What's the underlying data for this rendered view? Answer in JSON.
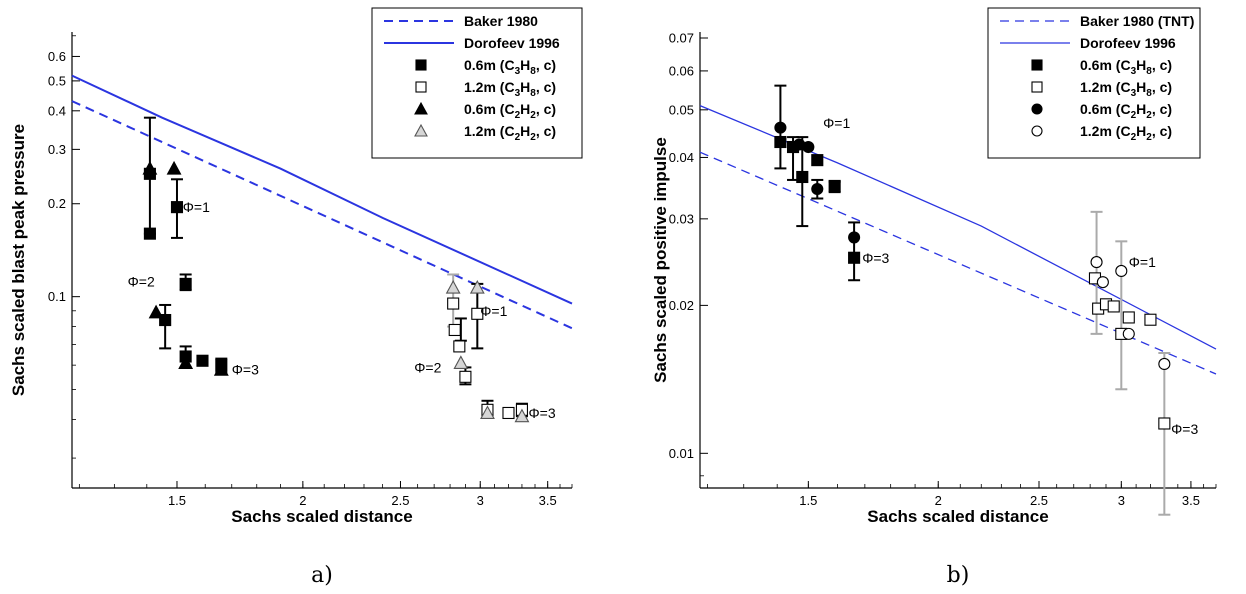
{
  "chart_data": [
    {
      "type": "scatter",
      "panel": "a)",
      "xlabel": "Sachs scaled distance",
      "ylabel": "Sachs scaled blast peak pressure",
      "xscale": "log",
      "yscale": "log",
      "xlim": [
        1.18,
        3.7
      ],
      "ylim": [
        0.024,
        0.72
      ],
      "xticks": [
        1.5,
        2,
        2.5,
        3,
        3.5
      ],
      "xtick_labels": [
        "1.5",
        "2",
        "2.5",
        "3",
        "3.5"
      ],
      "yticks": [
        0.1,
        0.2,
        0.3,
        0.4,
        0.5,
        0.6
      ],
      "ytick_labels": [
        "0.1",
        "0.2",
        "0.3",
        "0.4",
        "0.5",
        "0.6"
      ],
      "grid": false,
      "legend_position": "top-right",
      "lines": [
        {
          "name": "Baker 1980",
          "style": "dashed",
          "color": "#2b35e0",
          "x": [
            1.18,
            3.7
          ],
          "y": [
            0.43,
            0.079
          ]
        },
        {
          "name": "Dorofeev 1996",
          "style": "solid",
          "color": "#2b35e0",
          "x": [
            1.18,
            1.45,
            1.9,
            2.4,
            3.7
          ],
          "y": [
            0.52,
            0.38,
            0.26,
            0.18,
            0.095
          ]
        }
      ],
      "series": [
        {
          "name": "0.6m (C3H8, c)",
          "legend_parts": [
            "0.6m (C",
            "3",
            "H",
            "8",
            ", c)"
          ],
          "marker": "filled-square",
          "color": "#000000",
          "points": [
            [
              1.41,
              0.25
            ],
            [
              1.41,
              0.16
            ],
            [
              1.5,
              0.195
            ],
            [
              1.53,
              0.11
            ],
            [
              1.46,
              0.084
            ],
            [
              1.53,
              0.064
            ],
            [
              1.59,
              0.062
            ],
            [
              1.66,
              0.06
            ]
          ]
        },
        {
          "name": "1.2m (C3H8, c)",
          "legend_parts": [
            "1.2m (C",
            "3",
            "H",
            "8",
            ", c)"
          ],
          "marker": "open-square",
          "color": "#000000",
          "points": [
            [
              2.82,
              0.095
            ],
            [
              2.98,
              0.088
            ],
            [
              2.83,
              0.078
            ],
            [
              2.86,
              0.069
            ],
            [
              2.9,
              0.055
            ],
            [
              3.05,
              0.043
            ],
            [
              3.2,
              0.042
            ],
            [
              3.3,
              0.043
            ]
          ]
        },
        {
          "name": "0.6m (C2H2, c)",
          "legend_parts": [
            "0.6m (C",
            "2",
            "H",
            "2",
            ", c)"
          ],
          "marker": "filled-triangle",
          "color": "#000000",
          "points": [
            [
              1.41,
              0.26
            ],
            [
              1.49,
              0.26
            ],
            [
              1.43,
              0.089
            ],
            [
              1.53,
              0.061
            ],
            [
              1.66,
              0.058
            ]
          ]
        },
        {
          "name": "1.2m (C2H2, c)",
          "legend_parts": [
            "1.2m (C",
            "2",
            "H",
            "2",
            ", c)"
          ],
          "marker": "open-triangle",
          "color": "#888888",
          "points": [
            [
              2.82,
              0.107
            ],
            [
              2.98,
              0.107
            ],
            [
              2.87,
              0.061
            ],
            [
              3.05,
              0.042
            ],
            [
              3.3,
              0.041
            ]
          ]
        }
      ],
      "error_bars": [
        {
          "x": 1.41,
          "low": 0.16,
          "high": 0.38,
          "color": "#000000"
        },
        {
          "x": 1.5,
          "low": 0.155,
          "high": 0.24,
          "color": "#000000"
        },
        {
          "x": 1.53,
          "low": 0.105,
          "high": 0.118,
          "color": "#000000"
        },
        {
          "x": 1.46,
          "low": 0.068,
          "high": 0.094,
          "color": "#000000"
        },
        {
          "x": 1.53,
          "low": 0.059,
          "high": 0.069,
          "color": "#000000"
        },
        {
          "x": 1.66,
          "low": 0.057,
          "high": 0.063,
          "color": "#000000"
        },
        {
          "x": 2.82,
          "low": 0.08,
          "high": 0.118,
          "color": "#aaaaaa"
        },
        {
          "x": 2.98,
          "low": 0.068,
          "high": 0.11,
          "color": "#000000"
        },
        {
          "x": 2.87,
          "low": 0.072,
          "high": 0.085,
          "color": "#000000"
        },
        {
          "x": 2.9,
          "low": 0.052,
          "high": 0.059,
          "color": "#000000"
        },
        {
          "x": 3.05,
          "low": 0.041,
          "high": 0.046,
          "color": "#000000"
        },
        {
          "x": 3.3,
          "low": 0.041,
          "high": 0.045,
          "color": "#000000"
        }
      ],
      "annotations": [
        {
          "text": "Φ=1",
          "x": 1.52,
          "y": 0.195
        },
        {
          "text": "Φ=2",
          "x": 1.34,
          "y": 0.112
        },
        {
          "text": "Φ=3",
          "x": 1.7,
          "y": 0.058
        },
        {
          "text": "Φ=1",
          "x": 3.0,
          "y": 0.09
        },
        {
          "text": "Φ=2",
          "x": 2.58,
          "y": 0.059
        },
        {
          "text": "Φ=3",
          "x": 3.35,
          "y": 0.042
        }
      ],
      "legend": [
        {
          "label": "Baker 1980",
          "symbol": "dashed-line"
        },
        {
          "label": "Dorofeev 1996",
          "symbol": "solid-line"
        },
        {
          "parts": [
            "0.6m (C",
            "3",
            "H",
            "8",
            ", c)"
          ],
          "symbol": "filled-square"
        },
        {
          "parts": [
            "1.2m (C",
            "3",
            "H",
            "8",
            ", c)"
          ],
          "symbol": "open-square"
        },
        {
          "parts": [
            "0.6m (C",
            "2",
            "H",
            "2",
            ", c)"
          ],
          "symbol": "filled-triangle"
        },
        {
          "parts": [
            "1.2m (C",
            "2",
            "H",
            "2",
            ", c)"
          ],
          "symbol": "open-triangle"
        }
      ]
    },
    {
      "type": "scatter",
      "panel": "b)",
      "xlabel": "Sachs scaled distance",
      "ylabel": "Sachs scaled positive impulse",
      "xscale": "log",
      "yscale": "log",
      "xlim": [
        1.18,
        3.7
      ],
      "ylim": [
        0.0085,
        0.072
      ],
      "xticks": [
        1.5,
        2,
        2.5,
        3,
        3.5
      ],
      "xtick_labels": [
        "1.5",
        "2",
        "2.5",
        "3",
        "3.5"
      ],
      "yticks": [
        0.01,
        0.02,
        0.03,
        0.04,
        0.05,
        0.06,
        0.07
      ],
      "ytick_labels": [
        "0.01",
        "0.02",
        "0.03",
        "0.04",
        "0.05",
        "0.06",
        "0.07"
      ],
      "grid": false,
      "legend_position": "top-right",
      "lines": [
        {
          "name": "Baker 1980 (TNT)",
          "style": "dashed",
          "color": "#2b35e0",
          "x": [
            1.18,
            3.7
          ],
          "y": [
            0.041,
            0.0145
          ]
        },
        {
          "name": "Dorofeev 1996",
          "style": "solid",
          "color": "#2b35e0",
          "x": [
            1.18,
            1.6,
            2.2,
            3.7
          ],
          "y": [
            0.051,
            0.039,
            0.029,
            0.0163
          ]
        }
      ],
      "series": [
        {
          "name": "0.6m (C3H8, c)",
          "legend_parts": [
            "0.6m (C",
            "3",
            "H",
            "8",
            ", c)"
          ],
          "marker": "filled-square",
          "color": "#000000",
          "points": [
            [
              1.41,
              0.043
            ],
            [
              1.45,
              0.042
            ],
            [
              1.48,
              0.0365
            ],
            [
              1.53,
              0.0395
            ],
            [
              1.59,
              0.035
            ],
            [
              1.66,
              0.025
            ]
          ]
        },
        {
          "name": "1.2m (C3H8, c)",
          "legend_parts": [
            "1.2m (C",
            "3",
            "H",
            "8",
            ", c)"
          ],
          "marker": "open-square",
          "color": "#000000",
          "points": [
            [
              2.83,
              0.0227
            ],
            [
              2.85,
              0.0197
            ],
            [
              2.9,
              0.0201
            ],
            [
              2.95,
              0.0199
            ],
            [
              3.05,
              0.0189
            ],
            [
              3.2,
              0.0187
            ],
            [
              3.0,
              0.0175
            ],
            [
              3.3,
              0.0115
            ]
          ]
        },
        {
          "name": "0.6m (C2H2, c)",
          "legend_parts": [
            "0.6m (C",
            "2",
            "H",
            "2",
            ", c)"
          ],
          "marker": "filled-circle",
          "color": "#000000",
          "points": [
            [
              1.41,
              0.046
            ],
            [
              1.47,
              0.0425
            ],
            [
              1.5,
              0.042
            ],
            [
              1.53,
              0.0345
            ],
            [
              1.66,
              0.0275
            ]
          ]
        },
        {
          "name": "1.2m (C2H2, c)",
          "legend_parts": [
            "1.2m (C",
            "2",
            "H",
            "2",
            ", c)"
          ],
          "marker": "open-circle",
          "color": "#000000",
          "points": [
            [
              2.84,
              0.0245
            ],
            [
              2.88,
              0.0223
            ],
            [
              3.0,
              0.0235
            ],
            [
              3.05,
              0.0175
            ],
            [
              3.3,
              0.0152
            ]
          ]
        }
      ],
      "error_bars": [
        {
          "x": 1.41,
          "low": 0.038,
          "high": 0.056,
          "color": "#000000"
        },
        {
          "x": 1.45,
          "low": 0.036,
          "high": 0.044,
          "color": "#000000"
        },
        {
          "x": 1.48,
          "low": 0.029,
          "high": 0.044,
          "color": "#000000"
        },
        {
          "x": 1.53,
          "low": 0.033,
          "high": 0.036,
          "color": "#000000"
        },
        {
          "x": 1.59,
          "low": 0.034,
          "high": 0.0357,
          "color": "#000000"
        },
        {
          "x": 1.66,
          "low": 0.0225,
          "high": 0.0295,
          "color": "#000000"
        },
        {
          "x": 2.84,
          "low": 0.0175,
          "high": 0.031,
          "color": "#aaaaaa"
        },
        {
          "x": 3.0,
          "low": 0.0135,
          "high": 0.027,
          "color": "#aaaaaa"
        },
        {
          "x": 3.3,
          "low": 0.0075,
          "high": 0.016,
          "color": "#aaaaaa"
        }
      ],
      "annotations": [
        {
          "text": "Φ=1",
          "x": 1.55,
          "y": 0.047
        },
        {
          "text": "Φ=3",
          "x": 1.69,
          "y": 0.025
        },
        {
          "text": "Φ=1",
          "x": 3.05,
          "y": 0.0245
        },
        {
          "text": "Φ=3",
          "x": 3.35,
          "y": 0.0112
        }
      ],
      "legend": [
        {
          "label": "Baker 1980 (TNT)",
          "symbol": "dashed-line"
        },
        {
          "label": "Dorofeev 1996",
          "symbol": "solid-line"
        },
        {
          "parts": [
            "0.6m (C",
            "3",
            "H",
            "8",
            ", c)"
          ],
          "symbol": "filled-square"
        },
        {
          "parts": [
            "1.2m (C",
            "3",
            "H",
            "8",
            ", c)"
          ],
          "symbol": "open-square"
        },
        {
          "parts": [
            "0.6m (C",
            "2",
            "H",
            "2",
            ", c)"
          ],
          "symbol": "filled-circle"
        },
        {
          "parts": [
            "1.2m (C",
            "2",
            "H",
            "2",
            ", c)"
          ],
          "symbol": "open-circle"
        }
      ]
    }
  ]
}
